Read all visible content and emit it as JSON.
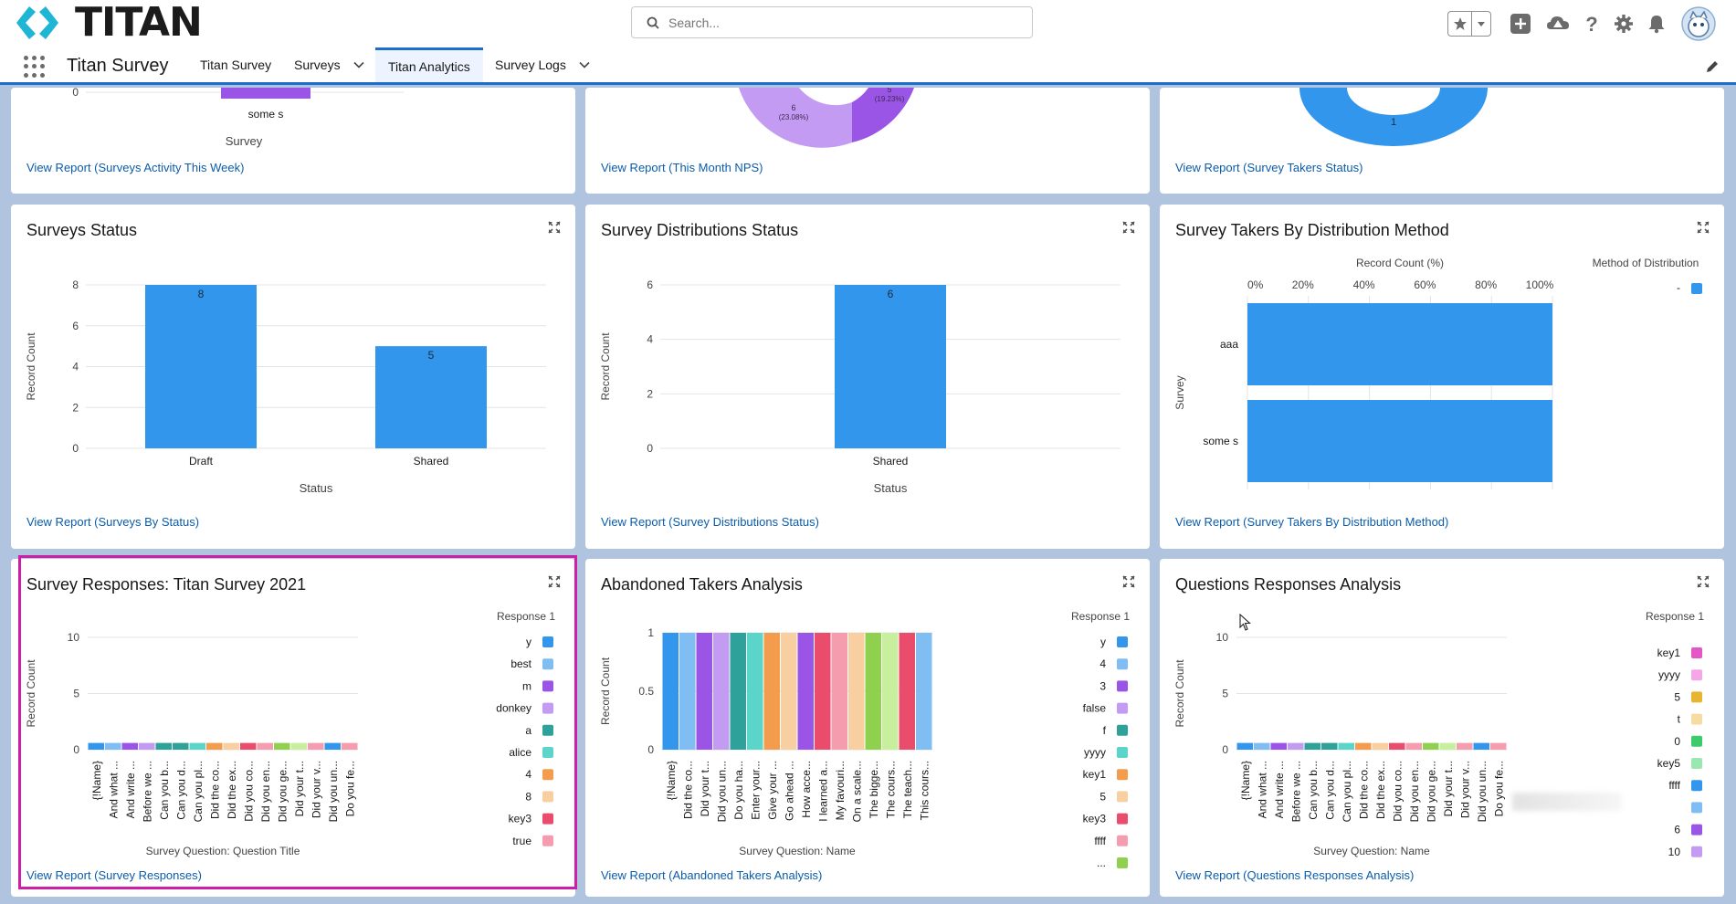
{
  "header": {
    "logo_text": "TITAN",
    "search_placeholder": "Search...",
    "icons": [
      "favorites-star-icon",
      "favorites-dropdown-icon",
      "add-icon",
      "trailhead-icon",
      "help-icon",
      "setup-gear-icon",
      "notifications-bell-icon",
      "user-avatar"
    ]
  },
  "nav": {
    "app_name": "Titan Survey",
    "tabs": [
      {
        "label": "Titan Survey",
        "has_dropdown": false,
        "active": false
      },
      {
        "label": "Surveys",
        "has_dropdown": true,
        "active": false
      },
      {
        "label": "Titan Analytics",
        "has_dropdown": false,
        "active": true
      },
      {
        "label": "Survey Logs",
        "has_dropdown": true,
        "active": false
      }
    ]
  },
  "colors": {
    "accent_blue": "#1b6ec9",
    "bar_blue": "#3296ed",
    "link_blue": "#0b5cab",
    "purple": "#9b55e6",
    "light_purple": "#c39bf2",
    "highlight_magenta": "#cc1ea6"
  },
  "cards": {
    "activity": {
      "tick_zero": "0",
      "category": "some s",
      "x_label": "Survey",
      "link": "View Report (Surveys Activity This Week)"
    },
    "nps": {
      "slice_labels": [
        {
          "value": "6",
          "pct": "(23.08%)"
        },
        {
          "value": "5",
          "pct": "(19.23%)"
        }
      ],
      "link": "View Report (This Month NPS)"
    },
    "takers_status": {
      "center_value": "1",
      "link": "View Report (Survey Takers Status)"
    },
    "surveys_status": {
      "title": "Surveys Status",
      "link": "View Report (Surveys By Status)"
    },
    "distributions": {
      "title": "Survey Distributions Status",
      "link": "View Report (Survey Distributions Status)"
    },
    "distribution_method": {
      "title": "Survey Takers By Distribution Method",
      "legend_title": "Method of Distribution",
      "legend_items": [
        {
          "label": "-",
          "color": "#3296ed"
        }
      ],
      "link": "View Report (Survey Takers By Distribution Method)"
    },
    "responses": {
      "title": "Survey Responses: Titan Survey 2021",
      "legend_title": "Response 1",
      "legend_items": [
        {
          "label": "y",
          "color": "#3296ed"
        },
        {
          "label": "best",
          "color": "#7fbdf2"
        },
        {
          "label": "m",
          "color": "#9b55e6"
        },
        {
          "label": "donkey",
          "color": "#c39bf2"
        },
        {
          "label": "a",
          "color": "#2da19a"
        },
        {
          "label": "alice",
          "color": "#5bd4c9"
        },
        {
          "label": "4",
          "color": "#f39c4d"
        },
        {
          "label": "8",
          "color": "#f8cfa0"
        },
        {
          "label": "key3",
          "color": "#ea4c6b"
        },
        {
          "label": "true",
          "color": "#f59dae"
        }
      ],
      "link": "View Report (Survey Responses)"
    },
    "abandoned": {
      "title": "Abandoned Takers Analysis",
      "legend_title": "Response 1",
      "legend_items": [
        {
          "label": "y",
          "color": "#3296ed"
        },
        {
          "label": "4",
          "color": "#7fbdf2"
        },
        {
          "label": "3",
          "color": "#9b55e6"
        },
        {
          "label": "false",
          "color": "#c39bf2"
        },
        {
          "label": "f",
          "color": "#2da19a"
        },
        {
          "label": "yyyy",
          "color": "#5bd4c9"
        },
        {
          "label": "key1",
          "color": "#f39c4d"
        },
        {
          "label": "5",
          "color": "#f8cfa0"
        },
        {
          "label": "key3",
          "color": "#ea4c6b"
        },
        {
          "label": "ffff",
          "color": "#f59dae"
        },
        {
          "label": "...",
          "color": "#8fd14f"
        }
      ],
      "link": "View Report (Abandoned Takers Analysis)"
    },
    "questions": {
      "title": "Questions Responses Analysis",
      "legend_title": "Response 1",
      "legend_items": [
        {
          "label": "key1",
          "color": "#e356c6"
        },
        {
          "label": "yyyy",
          "color": "#f5a6e6"
        },
        {
          "label": "5",
          "color": "#e8b530"
        },
        {
          "label": "t",
          "color": "#f6dca2"
        },
        {
          "label": "0",
          "color": "#3ccb6a"
        },
        {
          "label": "key5",
          "color": "#9ae7b1"
        },
        {
          "label": "ffff",
          "color": "#3296ed"
        },
        {
          "label": "",
          "color": "#7fbdf2"
        },
        {
          "label": "6",
          "color": "#9b55e6"
        },
        {
          "label": "10",
          "color": "#c39bf2"
        }
      ],
      "link": "View Report (Questions Responses Analysis)"
    }
  },
  "chart_data": [
    {
      "type": "bar",
      "id": "surveys-status",
      "categories": [
        "Draft",
        "Shared"
      ],
      "values": [
        8,
        5
      ],
      "xlabel": "Status",
      "ylabel": "Record Count",
      "yticks": [
        0,
        2,
        4,
        6,
        8
      ],
      "ylim": [
        0,
        8
      ],
      "data_labels": [
        "8",
        "5"
      ]
    },
    {
      "type": "bar",
      "id": "distributions-status",
      "categories": [
        "Shared"
      ],
      "values": [
        6
      ],
      "xlabel": "Status",
      "ylabel": "Record Count",
      "yticks": [
        0,
        2,
        4,
        6
      ],
      "ylim": [
        0,
        6
      ],
      "data_labels": [
        "6"
      ]
    },
    {
      "type": "bar",
      "id": "distribution-method",
      "orientation": "horizontal",
      "categories": [
        "aaa",
        "some s"
      ],
      "values": [
        100,
        100
      ],
      "xlabel": "Record Count (%)",
      "ylabel": "Survey",
      "xticks": [
        "0%",
        "20%",
        "40%",
        "60%",
        "80%",
        "100%"
      ],
      "xlim": [
        0,
        100
      ]
    },
    {
      "type": "bar",
      "id": "survey-responses",
      "stacked": true,
      "categories": [
        "{!Name}",
        "And what ...",
        "And write ...",
        "Before we ...",
        "Can you b...",
        "Can you d...",
        "Can you pl...",
        "Did the co...",
        "Did the ex...",
        "Did you co...",
        "Did you en...",
        "Did you ge...",
        "Did your t...",
        "Did your v...",
        "Did you un...",
        "Do you fe..."
      ],
      "values": [
        0.6,
        0.6,
        0.6,
        0.6,
        0.6,
        0.6,
        0.6,
        0.6,
        0.6,
        0.6,
        0.6,
        0.6,
        0.6,
        0.6,
        0.6,
        0.6
      ],
      "bar_colors": [
        "#3296ed",
        "#7fbdf2",
        "#9b55e6",
        "#c39bf2",
        "#2da19a",
        "#2da19a",
        "#5bd4c9",
        "#f39c4d",
        "#f8cfa0",
        "#ea4c6b",
        "#f59dae",
        "#8fd14f",
        "#c8ef9e",
        "#f59dae",
        "#3296ed",
        "#f59dae"
      ],
      "xlabel": "Survey Question: Question Title",
      "ylabel": "Record Count",
      "yticks": [
        0,
        5,
        10
      ],
      "ylim": [
        0,
        10
      ]
    },
    {
      "type": "bar",
      "id": "abandoned-takers",
      "stacked": true,
      "categories": [
        "{!Name}",
        "Did the co...",
        "Did your t...",
        "Did you un...",
        "Do you ha...",
        "Enter your...",
        "Give your ...",
        "Go ahead ...",
        "How acce...",
        "I learned a...",
        "My favouri...",
        "On a scale...",
        "The bigge...",
        "The cours...",
        "The teach...",
        "This cours..."
      ],
      "values": [
        1,
        1,
        1,
        1,
        1,
        1,
        1,
        1,
        1,
        1,
        1,
        1,
        1,
        1,
        1,
        1
      ],
      "bar_colors": [
        "#3296ed",
        "#7fbdf2",
        "#9b55e6",
        "#c39bf2",
        "#2da19a",
        "#5bd4c9",
        "#f39c4d",
        "#f8cfa0",
        "#9b55e6",
        "#ea4c6b",
        "#f59dae",
        "#f8cfa0",
        "#8fd14f",
        "#c8ef9e",
        "#ea4c6b",
        "#7fbdf2"
      ],
      "xlabel": "Survey Question: Name",
      "ylabel": "Record Count",
      "yticks": [
        0,
        0.5,
        1
      ],
      "ylim": [
        0,
        1
      ]
    },
    {
      "type": "bar",
      "id": "questions-responses",
      "stacked": true,
      "categories": [
        "{!Name}",
        "And what ...",
        "And write ...",
        "Before we ...",
        "Can you b...",
        "Can you d...",
        "Can you pl...",
        "Did the co...",
        "Did the ex...",
        "Did you co...",
        "Did you en...",
        "Did you ge...",
        "Did your t...",
        "Did your v...",
        "Did you un...",
        "Do you fe..."
      ],
      "values": [
        0.6,
        0.6,
        0.6,
        0.6,
        0.6,
        0.6,
        0.6,
        0.6,
        0.6,
        0.6,
        0.6,
        0.6,
        0.6,
        0.6,
        0.6,
        0.6
      ],
      "bar_colors": [
        "#3296ed",
        "#7fbdf2",
        "#9b55e6",
        "#c39bf2",
        "#2da19a",
        "#2da19a",
        "#5bd4c9",
        "#f39c4d",
        "#f8cfa0",
        "#ea4c6b",
        "#f59dae",
        "#8fd14f",
        "#c8ef9e",
        "#f59dae",
        "#3296ed",
        "#f59dae"
      ],
      "xlabel": "Survey Question: Name",
      "ylabel": "Record Count",
      "yticks": [
        0,
        5,
        10
      ],
      "ylim": [
        0,
        10
      ]
    }
  ]
}
